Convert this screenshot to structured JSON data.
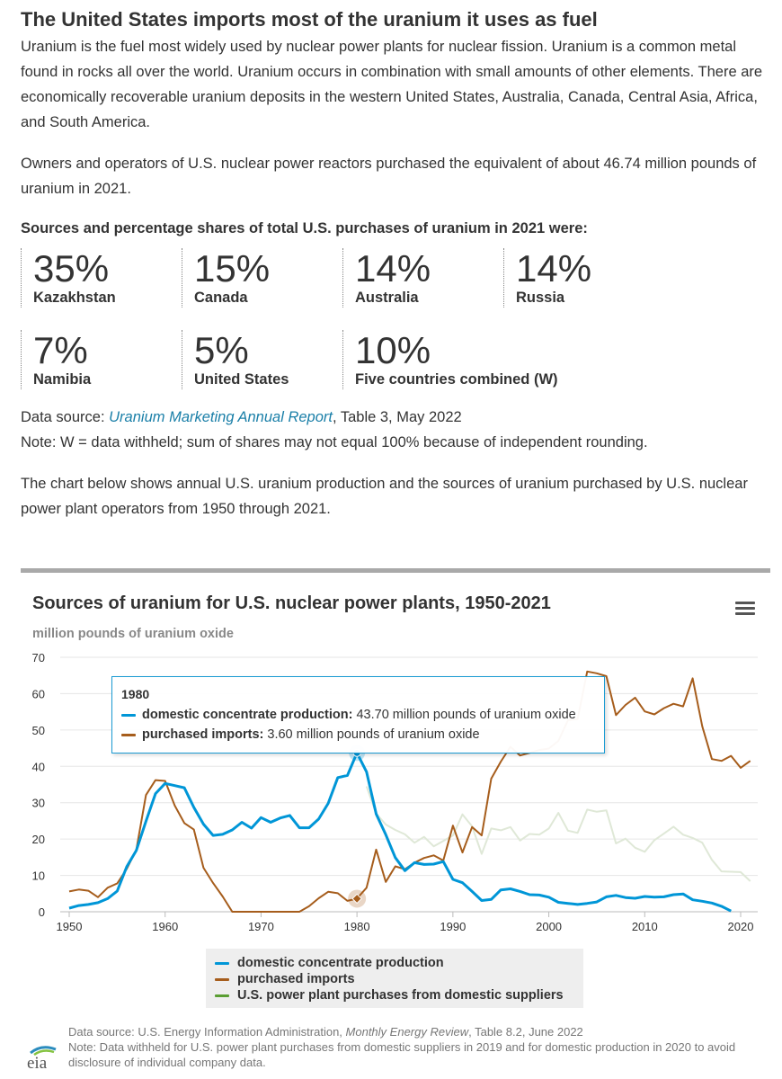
{
  "header": {
    "title": "The United States imports most of the uranium it uses as fuel",
    "para1": "Uranium is the fuel most widely used by nuclear power plants for nuclear fission. Uranium is a common metal found in rocks all over the world. Uranium occurs in combination with small amounts of other elements. There are economically recoverable uranium deposits in the western United States, Australia, Canada, Central Asia, Africa, and South America.",
    "para2": "Owners and operators of U.S. nuclear power reactors purchased the equivalent of about 46.74 million pounds of uranium in 2021."
  },
  "shares": {
    "title": "Sources and percentage shares of total U.S. purchases of uranium in 2021 were:",
    "items": [
      {
        "pct": "35%",
        "country": "Kazakhstan"
      },
      {
        "pct": "15%",
        "country": "Canada"
      },
      {
        "pct": "14%",
        "country": "Australia"
      },
      {
        "pct": "14%",
        "country": "Russia"
      },
      {
        "pct": "7%",
        "country": "Namibia"
      },
      {
        "pct": "5%",
        "country": "United States"
      },
      {
        "pct": "10%",
        "country": "Five countries combined (W)"
      }
    ]
  },
  "source": {
    "prefix": "Data source: ",
    "link": "Uranium Marketing Annual Report",
    "suffix": ", Table 3, May 2022",
    "note": "Note: W = data withheld; sum of shares may not equal 100% because of independent rounding."
  },
  "intro_chart": "The chart below shows annual U.S. uranium production and the sources of uranium purchased by U.S. nuclear power plant operators from 1950 through 2021.",
  "chart": {
    "title": "Sources of uranium for U.S. nuclear power plants, 1950-2021",
    "y_unit": "million pounds of uranium oxide",
    "menu_icon": "hamburger-menu-icon"
  },
  "tooltip": {
    "year": "1980",
    "row1_label": "domestic concentrate production:",
    "row1_value": " 43.70 million pounds of uranium oxide",
    "row2_label": "purchased imports:",
    "row2_value": " 3.60 million pounds of uranium oxide"
  },
  "footer": {
    "source_prefix": "Data source: U.S. Energy Information Administration, ",
    "source_italic": "Monthly Energy Review",
    "source_suffix": ", Table 8.2, June 2022",
    "note": "Note: Data withheld for U.S. power plant purchases from domestic suppliers in 2019 and for domestic production in 2020 to avoid disclosure of individual company data.",
    "logo_text": "eia"
  },
  "chart_data": {
    "type": "line",
    "title": "Sources of uranium for U.S. nuclear power plants, 1950-2021",
    "ylabel": "million pounds of uranium oxide",
    "xlim": [
      1950,
      2021
    ],
    "ylim": [
      0,
      70
    ],
    "yticks": [
      0,
      10,
      20,
      30,
      40,
      50,
      60,
      70
    ],
    "xticks": [
      1950,
      1960,
      1970,
      1980,
      1990,
      2000,
      2010,
      2020
    ],
    "grid": true,
    "legend": "bottom",
    "colors": {
      "domestic": "#0096d7",
      "imports": "#a65d1c",
      "suppliers": "#5a9e32",
      "suppliers_faded": "#dfe8d7"
    },
    "series": [
      {
        "name": "domestic concentrate production",
        "x": [
          1950,
          1951,
          1952,
          1953,
          1954,
          1955,
          1956,
          1957,
          1958,
          1959,
          1960,
          1961,
          1962,
          1963,
          1964,
          1965,
          1966,
          1967,
          1968,
          1969,
          1970,
          1971,
          1972,
          1973,
          1974,
          1975,
          1976,
          1977,
          1978,
          1979,
          1980,
          1981,
          1982,
          1983,
          1984,
          1985,
          1986,
          1987,
          1988,
          1989,
          1990,
          1991,
          1992,
          1993,
          1994,
          1995,
          1996,
          1997,
          1998,
          1999,
          2000,
          2001,
          2002,
          2003,
          2004,
          2005,
          2006,
          2007,
          2008,
          2009,
          2010,
          2011,
          2012,
          2013,
          2014,
          2015,
          2016,
          2017,
          2018,
          2019
        ],
        "values": [
          1.0,
          1.7,
          2.0,
          2.5,
          3.6,
          5.7,
          12.4,
          16.9,
          24.9,
          32.5,
          35.3,
          34.7,
          34.1,
          28.7,
          24.1,
          21.0,
          21.3,
          22.5,
          24.6,
          23.0,
          25.9,
          24.6,
          25.8,
          26.5,
          23.1,
          23.1,
          25.5,
          29.8,
          36.9,
          37.5,
          43.7,
          38.5,
          26.9,
          21.2,
          14.9,
          11.3,
          13.5,
          13.0,
          13.1,
          13.8,
          8.9,
          8.0,
          5.6,
          3.1,
          3.4,
          6.0,
          6.3,
          5.6,
          4.7,
          4.6,
          4.0,
          2.6,
          2.3,
          2.0,
          2.3,
          2.7,
          4.1,
          4.5,
          3.9,
          3.7,
          4.2,
          4.0,
          4.1,
          4.7,
          4.9,
          3.3,
          2.9,
          2.4,
          1.5,
          0.2
        ]
      },
      {
        "name": "purchased imports",
        "x": [
          1950,
          1951,
          1952,
          1953,
          1954,
          1955,
          1956,
          1957,
          1958,
          1959,
          1960,
          1961,
          1962,
          1963,
          1964,
          1965,
          1966,
          1967,
          1968,
          1969,
          1970,
          1971,
          1972,
          1973,
          1974,
          1975,
          1976,
          1977,
          1978,
          1979,
          1980,
          1981,
          1982,
          1983,
          1984,
          1985,
          1986,
          1987,
          1988,
          1989,
          1990,
          1991,
          1992,
          1993,
          1994,
          1995,
          1996,
          1997,
          1998,
          1999,
          2000,
          2001,
          2002,
          2003,
          2004,
          2005,
          2006,
          2007,
          2008,
          2009,
          2010,
          2011,
          2012,
          2013,
          2014,
          2015,
          2016,
          2017,
          2018,
          2019,
          2020,
          2021
        ],
        "values": [
          5.6,
          6.1,
          5.8,
          4.0,
          6.6,
          7.8,
          11.8,
          17.1,
          32.1,
          36.2,
          36.0,
          29.2,
          24.4,
          22.6,
          12.1,
          7.9,
          4.2,
          0.0,
          0.0,
          0.0,
          0.0,
          0.0,
          0.0,
          0.0,
          0.0,
          1.5,
          3.7,
          5.5,
          5.1,
          3.0,
          3.6,
          6.6,
          17.1,
          8.2,
          12.5,
          11.7,
          13.5,
          14.8,
          15.5,
          14.1,
          23.7,
          16.3,
          23.3,
          21.0,
          36.6,
          41.3,
          45.4,
          43.0,
          43.7,
          44.5,
          44.9,
          47.0,
          52.7,
          53.0,
          66.1,
          65.6,
          64.8,
          54.1,
          56.9,
          58.9,
          55.1,
          54.3,
          56.0,
          57.2,
          56.5,
          64.2,
          51.0,
          42.0,
          41.5,
          42.9,
          39.6,
          41.5
        ]
      },
      {
        "name": "U.S. power plant purchases from domestic suppliers",
        "x": [
          1981,
          1982,
          1983,
          1984,
          1985,
          1986,
          1987,
          1988,
          1989,
          1990,
          1991,
          1992,
          1993,
          1994,
          1995,
          1996,
          1997,
          1998,
          1999,
          2000,
          2001,
          2002,
          2003,
          2004,
          2005,
          2006,
          2007,
          2008,
          2009,
          2010,
          2011,
          2012,
          2013,
          2014,
          2015,
          2016,
          2017,
          2018,
          2020,
          2021
        ],
        "values": [
          34.5,
          27.0,
          24.0,
          22.5,
          21.3,
          19.0,
          20.6,
          18.0,
          19.5,
          21.0,
          26.8,
          23.5,
          15.9,
          22.9,
          22.4,
          23.3,
          19.6,
          21.4,
          21.2,
          22.9,
          27.2,
          22.3,
          21.7,
          28.1,
          27.5,
          27.9,
          18.8,
          20.1,
          17.6,
          16.5,
          19.7,
          21.5,
          23.4,
          21.2,
          20.3,
          19.0,
          14.3,
          11.1,
          10.9,
          8.4
        ]
      }
    ],
    "highlight_year": 1980
  }
}
